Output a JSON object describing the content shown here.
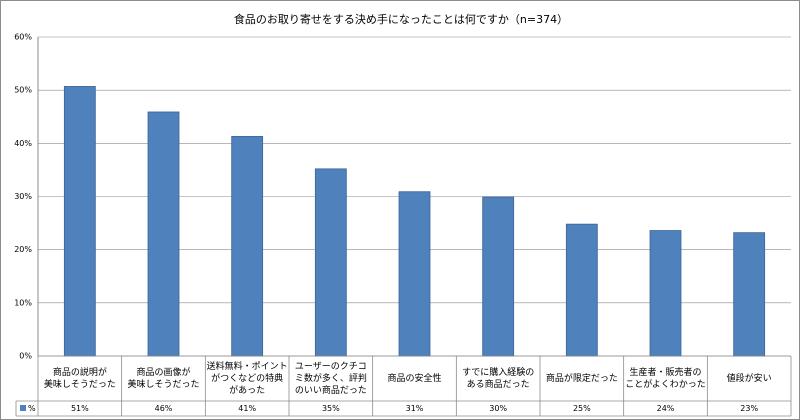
{
  "chart_data": {
    "type": "bar",
    "title": "食品のお取り寄せをする決め手になったことは何ですか（n=374）",
    "categories": [
      "商品の説明が\n美味しそうだった",
      "商品の画像が\n美味しそうだった",
      "送料無料・ポイント\nがつくなどの特典\nがあった",
      "ユーザーのクチコ\nミ数が多く、評判\nのいい商品だった",
      "商品の安全性",
      "すでに購入経験の\nある商品だった",
      "商品が限定だった",
      "生産者・販売者の\nことがよくわかった",
      "値段が安い"
    ],
    "series": [
      {
        "name": "%",
        "color": "#4f81bd",
        "values": [
          50.7,
          45.9,
          41.3,
          35.2,
          30.9,
          29.9,
          24.8,
          23.6,
          23.2
        ],
        "value_labels": [
          "51%",
          "46%",
          "41%",
          "35%",
          "31%",
          "30%",
          "25%",
          "24%",
          "23%"
        ]
      }
    ],
    "ylim": [
      0,
      60
    ],
    "yticks": [
      {
        "value": 0,
        "label": "0%"
      },
      {
        "value": 10,
        "label": "10%"
      },
      {
        "value": 20,
        "label": "20%"
      },
      {
        "value": 30,
        "label": "30%"
      },
      {
        "value": 40,
        "label": "40%"
      },
      {
        "value": 50,
        "label": "50%"
      },
      {
        "value": 60,
        "label": "60%"
      }
    ],
    "grid": true
  }
}
